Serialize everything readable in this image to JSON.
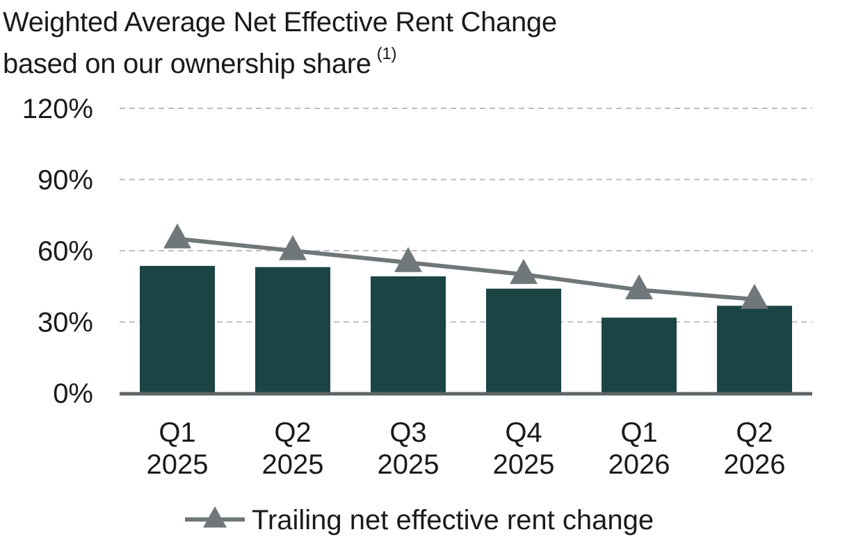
{
  "title_line1": "Weighted Average Net Effective Rent Change",
  "title_line2": "based on our ownership share",
  "footnote_marker": "(1)",
  "chart_data": {
    "type": "bar",
    "categories": [
      [
        "Q1",
        "2025"
      ],
      [
        "Q2",
        "2025"
      ],
      [
        "Q3",
        "2025"
      ],
      [
        "Q4",
        "2025"
      ],
      [
        "Q1",
        "2026"
      ],
      [
        "Q2",
        "2026"
      ]
    ],
    "series": [
      {
        "type": "bar",
        "values": [
          53.6,
          53.1,
          49.2,
          44.0,
          31.8,
          36.8
        ],
        "color": "#1b4545"
      },
      {
        "type": "line",
        "name": "Trailing net effective rent change",
        "marker": "triangle",
        "values": [
          65.0,
          60.0,
          55.0,
          50.0,
          43.5,
          39.5
        ],
        "color": "#6f777a"
      }
    ],
    "yticks": [
      "0%",
      "30%",
      "60%",
      "90%",
      "120%"
    ],
    "ytick_values": [
      0,
      30,
      60,
      90,
      120
    ],
    "ylim": [
      0,
      120
    ],
    "grid": "horizontal dashed",
    "legend": "bottom-center"
  }
}
